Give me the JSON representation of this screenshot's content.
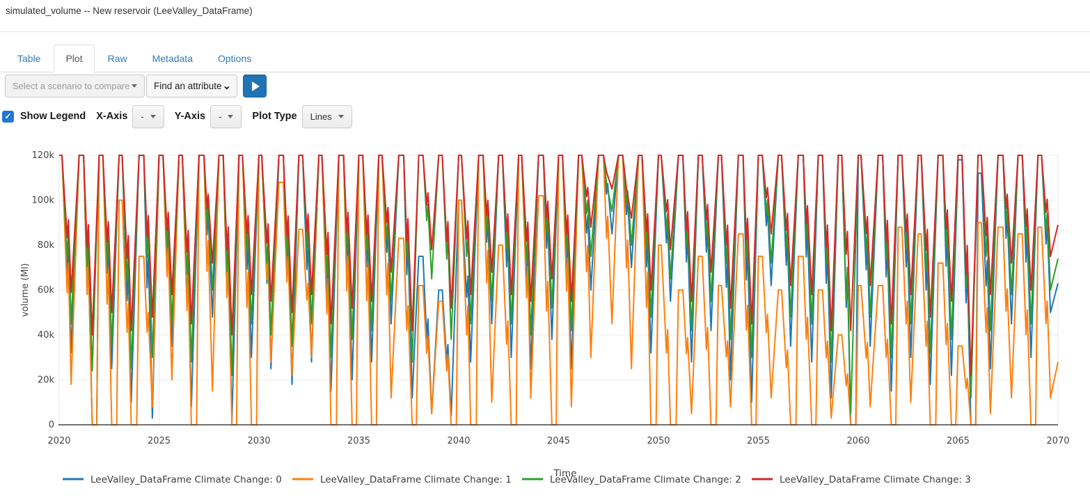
{
  "header": {
    "title": "simulated_volume -- New reservoir (LeeValley_DataFrame)"
  },
  "tabs": [
    {
      "label": "Table",
      "active": false
    },
    {
      "label": "Plot",
      "active": true
    },
    {
      "label": "Raw",
      "active": false
    },
    {
      "label": "Metadata",
      "active": false
    },
    {
      "label": "Options",
      "active": false
    }
  ],
  "toolbar": {
    "scenario_select_placeholder": "Select a scenario to compare",
    "attribute_button_label": "Find an attribute",
    "run_button_icon": "play-icon"
  },
  "plot_controls": {
    "show_legend_label": "Show Legend",
    "show_legend_checked": true,
    "check_glyph": "✓",
    "x_axis_label": "X-Axis",
    "x_axis_value": "-",
    "y_axis_label": "Y-Axis",
    "y_axis_value": "-",
    "plot_type_label": "Plot Type",
    "plot_type_value": "Lines"
  },
  "chart_data": {
    "type": "line",
    "title": "",
    "xlabel": "Time",
    "ylabel": "volume (Ml)",
    "xlim": [
      2020,
      2070
    ],
    "ylim": [
      0,
      120000
    ],
    "x_ticks": [
      2020,
      2025,
      2030,
      2035,
      2040,
      2045,
      2050,
      2055,
      2060,
      2065,
      2070
    ],
    "y_ticks": [
      {
        "v": 0,
        "label": "0"
      },
      {
        "v": 20000,
        "label": "20k"
      },
      {
        "v": 40000,
        "label": "40k"
      },
      {
        "v": 60000,
        "label": "60k"
      },
      {
        "v": 80000,
        "label": "80k"
      },
      {
        "v": 100000,
        "label": "100k"
      },
      {
        "v": 120000,
        "label": "120k"
      }
    ],
    "grid": true,
    "legend_position": "bottom",
    "start_year": 2020,
    "cap_k": 120,
    "values_unit": "thousand Ml (annual seasonal envelope: winter peak / summer minimum, estimated from plot)",
    "series": [
      {
        "name": "LeeValley_DataFrame Climate Change: 0",
        "color": "#1f77b4",
        "annual_min": [
          32,
          0,
          25,
          10,
          3,
          35,
          8,
          48,
          2,
          30,
          25,
          18,
          28,
          15,
          20,
          28,
          45,
          12,
          5,
          4,
          28,
          45,
          30,
          25,
          38,
          25,
          60,
          85,
          70,
          32,
          55,
          28,
          42,
          20,
          10,
          62,
          35,
          28,
          12,
          0,
          35,
          15,
          30,
          18,
          22,
          0,
          25,
          45,
          30,
          50
        ],
        "annual_peak": [
          120,
          120,
          120,
          120,
          120,
          120,
          120,
          120,
          120,
          120,
          120,
          120,
          120,
          120,
          120,
          120,
          120,
          120,
          75,
          60,
          100,
          120,
          120,
          120,
          120,
          120,
          120,
          120,
          120,
          120,
          120,
          120,
          120,
          120,
          120,
          120,
          120,
          120,
          120,
          120,
          120,
          120,
          120,
          120,
          120,
          118,
          112,
          120,
          120,
          120
        ],
        "end": 63
      },
      {
        "name": "LeeValley_DataFrame Climate Change: 1",
        "color": "#ff7f0e",
        "annual_min": [
          18,
          0,
          0,
          0,
          8,
          20,
          0,
          15,
          0,
          0,
          28,
          22,
          30,
          0,
          0,
          0,
          12,
          0,
          5,
          0,
          0,
          10,
          0,
          12,
          0,
          8,
          30,
          45,
          25,
          0,
          0,
          5,
          0,
          8,
          0,
          12,
          0,
          0,
          3,
          0,
          8,
          0,
          10,
          0,
          0,
          0,
          5,
          12,
          0,
          12
        ],
        "annual_peak": [
          120,
          120,
          120,
          100,
          75,
          120,
          120,
          120,
          120,
          120,
          120,
          108,
          87,
          120,
          120,
          120,
          120,
          83,
          62,
          55,
          100,
          120,
          80,
          120,
          102,
          120,
          120,
          120,
          120,
          120,
          80,
          60,
          75,
          62,
          85,
          75,
          60,
          75,
          60,
          40,
          62,
          62,
          88,
          85,
          72,
          35,
          90,
          88,
          85,
          88
        ],
        "end": 28
      },
      {
        "name": "LeeValley_DataFrame Climate Change: 2",
        "color": "#2ca02c",
        "annual_min": [
          45,
          24,
          35,
          25,
          30,
          45,
          28,
          60,
          22,
          45,
          40,
          35,
          45,
          30,
          38,
          42,
          55,
          28,
          65,
          38,
          45,
          55,
          45,
          40,
          52,
          42,
          75,
          95,
          80,
          48,
          65,
          42,
          55,
          38,
          30,
          72,
          48,
          45,
          28,
          5,
          48,
          30,
          45,
          32,
          38,
          12,
          42,
          58,
          45,
          60
        ],
        "end": 74
      },
      {
        "name": "LeeValley_DataFrame Climate Change: 3",
        "color": "#d62728",
        "annual_min": [
          59,
          40,
          50,
          42,
          48,
          58,
          45,
          72,
          40,
          58,
          55,
          50,
          58,
          45,
          52,
          55,
          68,
          42,
          78,
          52,
          58,
          68,
          58,
          55,
          65,
          55,
          88,
          105,
          92,
          60,
          78,
          55,
          68,
          52,
          45,
          85,
          62,
          58,
          42,
          42,
          62,
          45,
          58,
          48,
          55,
          22,
          58,
          72,
          60,
          75
        ],
        "end": 89
      }
    ]
  }
}
